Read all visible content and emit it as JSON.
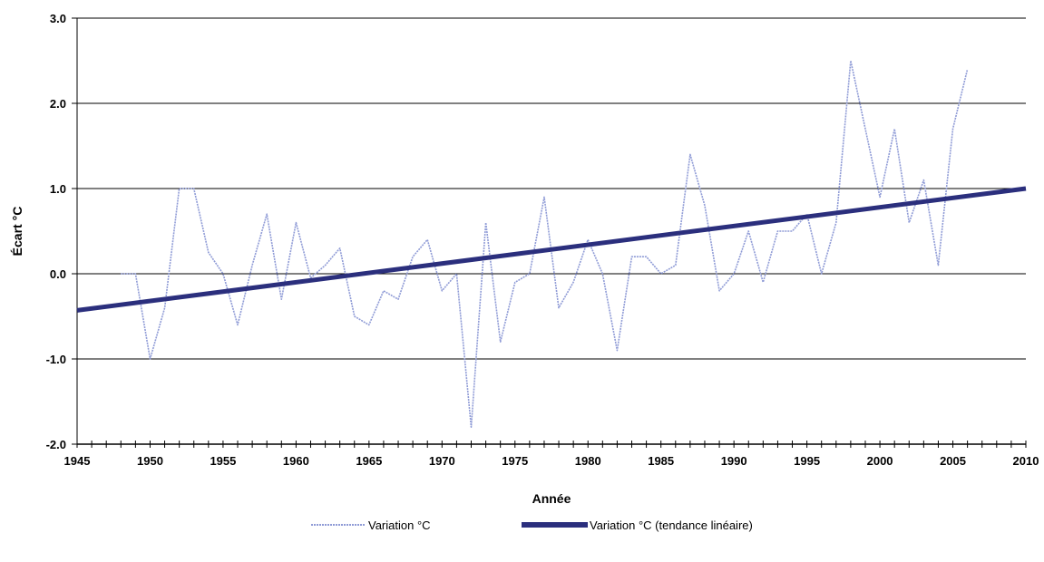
{
  "chart_data": {
    "type": "line",
    "title": "",
    "xlabel": "Année",
    "ylabel": "Écart °C",
    "xlim": [
      1945,
      2010
    ],
    "ylim": [
      -2.0,
      3.0
    ],
    "x_ticks": [
      1945,
      1950,
      1955,
      1960,
      1965,
      1970,
      1975,
      1980,
      1985,
      1990,
      1995,
      2000,
      2005,
      2010
    ],
    "y_ticks": [
      "-2.0",
      "-1.0",
      "0.0",
      "1.0",
      "2.0",
      "3.0"
    ],
    "y_tick_values": [
      -2,
      -1,
      0,
      1,
      2,
      3
    ],
    "grid": "horizontal",
    "legend_position": "bottom",
    "series": [
      {
        "name": "Variation °C",
        "color": "#8f9bd6",
        "style": "dotted-thin",
        "x": [
          1948,
          1949,
          1950,
          1951,
          1952,
          1953,
          1954,
          1955,
          1956,
          1957,
          1958,
          1959,
          1960,
          1961,
          1962,
          1963,
          1964,
          1965,
          1966,
          1967,
          1968,
          1969,
          1970,
          1971,
          1972,
          1973,
          1974,
          1975,
          1976,
          1977,
          1978,
          1979,
          1980,
          1981,
          1982,
          1983,
          1984,
          1985,
          1986,
          1987,
          1988,
          1989,
          1990,
          1991,
          1992,
          1993,
          1994,
          1995,
          1996,
          1997,
          1998,
          1999,
          2000,
          2001,
          2002,
          2003,
          2004,
          2005,
          2006
        ],
        "y": [
          0.0,
          0.0,
          -1.0,
          -0.4,
          1.0,
          1.0,
          0.25,
          0.0,
          -0.6,
          0.1,
          0.7,
          -0.3,
          0.6,
          -0.05,
          0.1,
          0.3,
          -0.5,
          -0.6,
          -0.2,
          -0.3,
          0.2,
          0.4,
          -0.2,
          0.0,
          -1.8,
          0.6,
          -0.8,
          -0.1,
          0.0,
          0.9,
          -0.4,
          -0.1,
          0.4,
          0.0,
          -0.9,
          0.2,
          0.2,
          0.0,
          0.1,
          1.4,
          0.8,
          -0.2,
          0.0,
          0.5,
          -0.1,
          0.5,
          0.5,
          0.7,
          0.0,
          0.6,
          2.5,
          1.7,
          0.9,
          1.7,
          0.6,
          1.1,
          0.1,
          1.7,
          2.4
        ]
      },
      {
        "name": "Variation °C (tendance linéaire)",
        "color": "#2b2f7d",
        "style": "thick",
        "x": [
          1945,
          2010
        ],
        "y": [
          -0.43,
          1.0
        ]
      }
    ]
  }
}
